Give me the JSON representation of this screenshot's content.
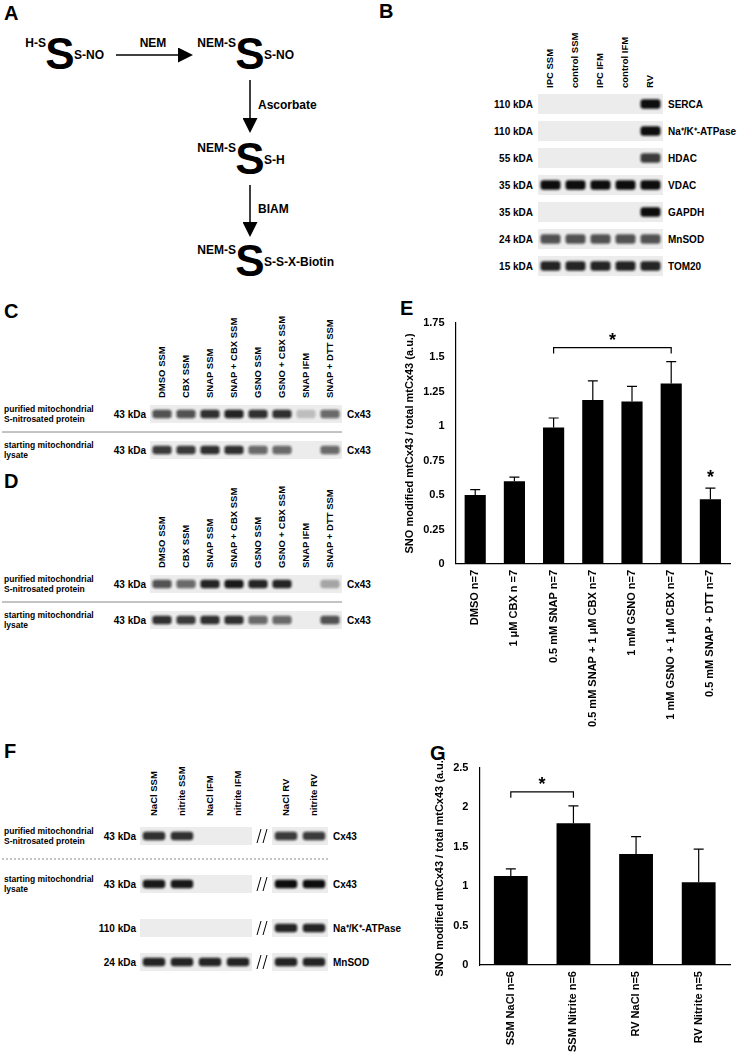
{
  "panels": {
    "A": {
      "label": "A",
      "states": [
        [
          "H-S",
          "S",
          "S-NO"
        ],
        [
          "NEM-S",
          "S",
          "S-NO"
        ],
        [
          "NEM-S",
          "S",
          "S-H"
        ],
        [
          "NEM-S",
          "S",
          "S-S-X-Biotin"
        ]
      ],
      "reagents": [
        "NEM",
        "Ascorbate",
        "BIAM"
      ]
    },
    "B": {
      "label": "B",
      "lanes": [
        "IPC SSM",
        "control SSM",
        "IPC IFM",
        "control IFM",
        "RV"
      ],
      "rows": [
        {
          "kda": "110 kDA",
          "name": "SERCA",
          "bands": [
            0,
            0,
            0,
            0,
            1
          ]
        },
        {
          "kda": "110 kDA",
          "name": "Na⁺/K⁺-ATPase",
          "bands": [
            0,
            0,
            0,
            0,
            1
          ]
        },
        {
          "kda": "55 kDA",
          "name": "HDAC",
          "bands": [
            0,
            0,
            0,
            0,
            0.8
          ]
        },
        {
          "kda": "35 kDA",
          "name": "VDAC",
          "bands": [
            1,
            1,
            1,
            1,
            1
          ]
        },
        {
          "kda": "35 kDA",
          "name": "GAPDH",
          "bands": [
            0,
            0,
            0,
            0,
            1
          ]
        },
        {
          "kda": "24 kDA",
          "name": "MnSOD",
          "bands": [
            0.7,
            0.7,
            0.7,
            0.7,
            0.7
          ]
        },
        {
          "kda": "15 kDA",
          "name": "TOM20",
          "bands": [
            0.9,
            0.9,
            0.9,
            0.9,
            0.9
          ]
        }
      ]
    },
    "C": {
      "label": "C",
      "lanes": [
        "DMSO SSM",
        "CBX SSM",
        "SNAP SSM",
        "SNAP + CBX SSM",
        "GSNO SSM",
        "GSNO + CBX SSM",
        "SNAP IFM",
        "SNAP + DTT SSM"
      ],
      "rows": [
        {
          "title": "purified mitochondrial S-nitrosated protein",
          "kda": "43 kDa",
          "name": "Cx43",
          "bands": [
            0.7,
            0.7,
            0.85,
            0.9,
            0.85,
            0.85,
            0.2,
            0.6
          ]
        },
        {
          "title": "starting mitochondrial lysate",
          "kda": "43 kDa",
          "name": "Cx43",
          "bands": [
            0.8,
            0.8,
            0.85,
            0.85,
            0.6,
            0.6,
            0,
            0.6
          ]
        }
      ]
    },
    "D": {
      "label": "D",
      "lanes": [
        "DMSO SSM",
        "CBX SSM",
        "SNAP SSM",
        "SNAP + CBX SSM",
        "GSNO SSM",
        "GSNO + CBX SSM",
        "SNAP IFM",
        "SNAP + DTT SSM"
      ],
      "rows": [
        {
          "title": "purified mitochondrial S-nitrosated protein",
          "kda": "43 kDa",
          "name": "Cx43",
          "bands": [
            0.7,
            0.6,
            0.9,
            0.95,
            0.9,
            0.9,
            0,
            0.3
          ]
        },
        {
          "title": "starting mitochondrial lysate",
          "kda": "43 kDa",
          "name": "Cx43",
          "bands": [
            0.85,
            0.8,
            0.85,
            0.85,
            0.6,
            0.6,
            0,
            0.7
          ]
        }
      ]
    },
    "F": {
      "label": "F",
      "lanes": [
        "NaCl SSM",
        "nitrite SSM",
        "NaCl IFM",
        "nitrite IFM",
        "NaCl RV",
        "nitrite RV"
      ],
      "rows": [
        {
          "title": "purified mitochondrial S-nitrosated protein",
          "kda": "43 kDa",
          "name": "Cx43",
          "bands": [
            0.85,
            0.85,
            0,
            0,
            0.8,
            0.8
          ]
        },
        {
          "title": "starting mitochondrial lysate",
          "kda": "43 kDa",
          "name": "Cx43",
          "bands": [
            0.95,
            0.95,
            0,
            0,
            1,
            1
          ]
        },
        {
          "kda": "110 kDa",
          "name": "Na⁺/K⁺-ATPase",
          "bands": [
            0,
            0,
            0,
            0,
            0.9,
            0.9
          ]
        },
        {
          "kda": "24 kDa",
          "name": "MnSOD",
          "bands": [
            0.9,
            0.9,
            0.9,
            0.9,
            0.9,
            0.9
          ]
        }
      ]
    }
  },
  "chart_data": [
    {
      "type": "bar",
      "title": "E",
      "categories": [
        "DMSO n=7",
        "1 μM CBX n =7",
        "0.5 mM SNAP n=7",
        "0.5 mM SNAP + 1 μM CBX n=7",
        "1 mM GSNO n=7",
        "1 mM GSNO + 1 μM CBX n=7",
        "0.5 mM SNAP + DTT n=7"
      ],
      "values": [
        0.5,
        0.6,
        0.99,
        1.19,
        1.18,
        1.31,
        0.47
      ],
      "errors": [
        0.04,
        0.03,
        0.07,
        0.14,
        0.11,
        0.16,
        0.08
      ],
      "color": "#000000",
      "ylabel": "SNO modified mtCx43 / total mtCx43 (a.u.)",
      "ylim": [
        0,
        1.75
      ],
      "yticks": [
        0,
        0.25,
        0.5,
        0.75,
        1,
        1.25,
        1.5,
        1.75
      ],
      "grid": false,
      "annotations": [
        {
          "text": "*",
          "from": 2,
          "to": 5
        },
        {
          "text": "*",
          "at": 6
        }
      ]
    },
    {
      "type": "bar",
      "title": "G",
      "categories": [
        "SSM NaCl n=6",
        "SSM Nitrite n=6",
        "RV NaCl n=5",
        "RV Nitrite n=5"
      ],
      "values": [
        1.13,
        1.8,
        1.41,
        1.05
      ],
      "errors": [
        0.09,
        0.22,
        0.22,
        0.42
      ],
      "color": "#000000",
      "ylabel": "SNO modified mtCx43 / total mtCx43 (a.u.)",
      "ylim": [
        0,
        2.5
      ],
      "yticks": [
        0,
        0.5,
        1,
        1.5,
        2,
        2.5
      ],
      "grid": false,
      "annotations": [
        {
          "text": "*",
          "from": 0,
          "to": 1
        }
      ]
    }
  ]
}
